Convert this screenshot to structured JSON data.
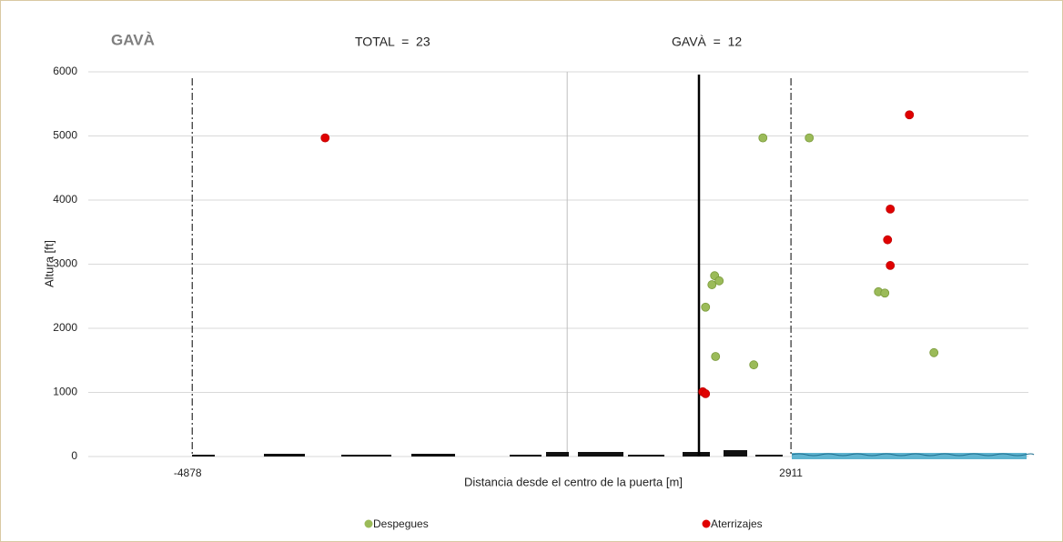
{
  "chart_data": {
    "type": "scatter",
    "title": "GAVÀ",
    "annotations": [
      "TOTAL  =  23",
      "GAVÀ  =  12"
    ],
    "x_label": "Distancia desde el centro de la puerta [m]",
    "y_label": "Altura [ft]",
    "xlim": [
      -6230,
      6000
    ],
    "ylim": [
      0,
      6000
    ],
    "yticks": [
      0,
      1000,
      2000,
      3000,
      4000,
      5000,
      6000
    ],
    "grid": true,
    "vlines": [
      -4878,
      2911
    ],
    "legend": "bottom",
    "series": [
      {
        "name": "Despegues",
        "color": "#9bbb59",
        "x": [
          2546,
          3149,
          1918,
          1883,
          1977,
          1800,
          1930,
          2427,
          4049,
          4132,
          4771
        ],
        "values": [
          4970,
          4970,
          2820,
          2680,
          2740,
          2330,
          1560,
          1430,
          2570,
          2550,
          1620
        ]
      },
      {
        "name": "Aterrizajes",
        "color": "#e00000",
        "x": [
          -3149,
          4452,
          4203,
          4168,
          4203,
          1764,
          1800
        ],
        "values": [
          4970,
          5330,
          3860,
          3380,
          2980,
          1010,
          980
        ]
      }
    ]
  }
}
